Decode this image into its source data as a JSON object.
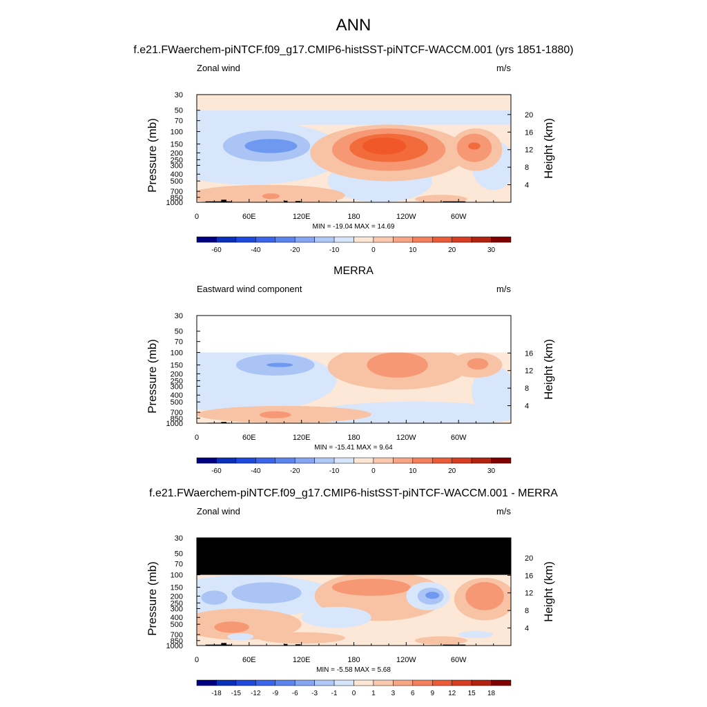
{
  "figure": {
    "title": "ANN",
    "colors": {
      "blue_dark": "#000080",
      "blue": "#2a5be0",
      "blue_mid": "#6f98f0",
      "blue_light": "#a9c4f5",
      "blue_pale": "#d7e6fa",
      "red_pale": "#fde7d6",
      "red_light": "#f8c2a4",
      "red_mid": "#f79874",
      "red": "#f26b3a",
      "red_dark": "#800000",
      "topography": "#000000",
      "missing": "#000000"
    }
  },
  "chart_data": [
    {
      "type": "heatmap",
      "title": "f.e21.FWaerchem-piNTCF.f09_g17.CMIP6-histSST-piNTCF-WACCM.001 (yrs 1851-1880)",
      "left_label": "Zonal wind",
      "right_label": "m/s",
      "ylabel": "Pressure (mb)",
      "ylabel_right": "Height (km)",
      "x_ticks": [
        "0",
        "60E",
        "120E",
        "180",
        "120W",
        "60W"
      ],
      "x_tick_lon": [
        0,
        60,
        120,
        180,
        240,
        300
      ],
      "xlim": [
        0,
        360
      ],
      "y_ticks": [
        "30",
        "50",
        "70",
        "100",
        "150",
        "200",
        "250",
        "300",
        "400",
        "500",
        "700",
        "850",
        "1000"
      ],
      "y_tick_values": [
        30,
        50,
        70,
        100,
        150,
        200,
        250,
        300,
        400,
        500,
        700,
        850,
        1000
      ],
      "ylim": [
        1000,
        30
      ],
      "y_scale": "log",
      "height_ticks": [
        "4",
        "8",
        "12",
        "16",
        "20"
      ],
      "height_tick_values": [
        4,
        8,
        12,
        16,
        20
      ],
      "stats": "MIN = -19.04  MAX =  14.69",
      "colorbar_labels": [
        "-60",
        "-40",
        "-20",
        "-10",
        "0",
        "10",
        "20",
        "30"
      ],
      "data_top_pressure": 30,
      "fields": [
        {
          "shape": "band",
          "level": 0,
          "p_top": 30,
          "p_bot": 50
        },
        {
          "shape": "band",
          "level": -1,
          "p_top": 50,
          "p_bot": 80
        },
        {
          "shape": "blob",
          "level": -1,
          "lon": 60,
          "p": 200,
          "rx": 110,
          "ry_decades": 0.45
        },
        {
          "shape": "blob",
          "level": -2,
          "lon": 80,
          "p": 160,
          "rx": 50,
          "ry_decades": 0.22
        },
        {
          "shape": "blob",
          "level": -3,
          "lon": 85,
          "p": 160,
          "rx": 30,
          "ry_decades": 0.1
        },
        {
          "shape": "blob",
          "level": -1,
          "lon": 210,
          "p": 500,
          "rx": 60,
          "ry_decades": 0.3
        },
        {
          "shape": "blob",
          "level": -1,
          "lon": 340,
          "p": 300,
          "rx": 25,
          "ry_decades": 0.35
        },
        {
          "shape": "blob",
          "level": 1,
          "lon": 220,
          "p": 200,
          "rx": 90,
          "ry_decades": 0.4
        },
        {
          "shape": "blob",
          "level": 2,
          "lon": 220,
          "p": 180,
          "rx": 65,
          "ry_decades": 0.3
        },
        {
          "shape": "blob",
          "level": 3,
          "lon": 220,
          "p": 170,
          "rx": 45,
          "ry_decades": 0.2
        },
        {
          "shape": "blob",
          "level": 4,
          "lon": 215,
          "p": 160,
          "rx": 25,
          "ry_decades": 0.12
        },
        {
          "shape": "blob",
          "level": 1,
          "lon": 320,
          "p": 180,
          "rx": 30,
          "ry_decades": 0.3
        },
        {
          "shape": "blob",
          "level": 2,
          "lon": 318,
          "p": 170,
          "rx": 20,
          "ry_decades": 0.2
        },
        {
          "shape": "blob",
          "level": 3,
          "lon": 318,
          "p": 160,
          "rx": 7,
          "ry_decades": 0.05
        },
        {
          "shape": "blob",
          "level": 1,
          "lon": 80,
          "p": 800,
          "rx": 90,
          "ry_decades": 0.15
        },
        {
          "shape": "blob",
          "level": 2,
          "lon": 85,
          "p": 820,
          "rx": 10,
          "ry_decades": 0.04
        },
        {
          "shape": "blob",
          "level": 1,
          "lon": 280,
          "p": 900,
          "rx": 30,
          "ry_decades": 0.06
        }
      ],
      "topography": [
        {
          "lon0": 10,
          "lon1": 40,
          "p_top": 970
        },
        {
          "lon0": 28,
          "lon1": 34,
          "p_top": 920
        },
        {
          "lon0": 100,
          "lon1": 104,
          "p_top": 950
        },
        {
          "lon0": 113,
          "lon1": 119,
          "p_top": 960
        },
        {
          "lon0": 282,
          "lon1": 308,
          "p_top": 970
        }
      ]
    },
    {
      "type": "heatmap",
      "title": "MERRA",
      "left_label": "Eastward wind component",
      "right_label": "m/s",
      "ylabel": "Pressure (mb)",
      "ylabel_right": "Height (km)",
      "x_ticks": [
        "0",
        "60E",
        "120E",
        "180",
        "120W",
        "60W"
      ],
      "x_tick_lon": [
        0,
        60,
        120,
        180,
        240,
        300
      ],
      "xlim": [
        0,
        360
      ],
      "y_ticks": [
        "30",
        "50",
        "70",
        "100",
        "150",
        "200",
        "250",
        "300",
        "400",
        "500",
        "700",
        "850",
        "1000"
      ],
      "y_tick_values": [
        30,
        50,
        70,
        100,
        150,
        200,
        250,
        300,
        400,
        500,
        700,
        850,
        1000
      ],
      "ylim": [
        1000,
        30
      ],
      "y_scale": "log",
      "height_ticks": [
        "4",
        "8",
        "12",
        "16"
      ],
      "height_tick_values": [
        4,
        8,
        12,
        16
      ],
      "stats": "MIN = -15.41  MAX =   9.64",
      "colorbar_labels": [
        "-60",
        "-40",
        "-20",
        "-10",
        "0",
        "10",
        "20",
        "30"
      ],
      "data_top_pressure": 100,
      "fields": [
        {
          "shape": "blob",
          "level": -1,
          "lon": 50,
          "p": 250,
          "rx": 110,
          "ry_decades": 0.45
        },
        {
          "shape": "blob",
          "level": -2,
          "lon": 90,
          "p": 150,
          "rx": 45,
          "ry_decades": 0.15
        },
        {
          "shape": "blob",
          "level": -3,
          "lon": 95,
          "p": 150,
          "rx": 15,
          "ry_decades": 0.03
        },
        {
          "shape": "blob",
          "level": -1,
          "lon": 250,
          "p": 750,
          "rx": 120,
          "ry_decades": 0.18
        },
        {
          "shape": "blob",
          "level": -1,
          "lon": 340,
          "p": 350,
          "rx": 25,
          "ry_decades": 0.35
        },
        {
          "shape": "blob",
          "level": 1,
          "lon": 230,
          "p": 160,
          "rx": 80,
          "ry_decades": 0.32
        },
        {
          "shape": "blob",
          "level": 2,
          "lon": 230,
          "p": 150,
          "rx": 35,
          "ry_decades": 0.18
        },
        {
          "shape": "blob",
          "level": 1,
          "lon": 320,
          "p": 150,
          "rx": 30,
          "ry_decades": 0.18
        },
        {
          "shape": "blob",
          "level": 2,
          "lon": 322,
          "p": 145,
          "rx": 12,
          "ry_decades": 0.08
        },
        {
          "shape": "blob",
          "level": 1,
          "lon": 100,
          "p": 750,
          "rx": 100,
          "ry_decades": 0.12
        },
        {
          "shape": "blob",
          "level": 2,
          "lon": 90,
          "p": 760,
          "rx": 18,
          "ry_decades": 0.05
        }
      ],
      "topography": [
        {
          "lon0": 12,
          "lon1": 38,
          "p_top": 985
        },
        {
          "lon0": 28,
          "lon1": 34,
          "p_top": 960
        }
      ]
    },
    {
      "type": "heatmap",
      "title": "f.e21.FWaerchem-piNTCF.f09_g17.CMIP6-histSST-piNTCF-WACCM.001 - MERRA",
      "left_label": "Zonal wind",
      "right_label": "m/s",
      "ylabel": "Pressure (mb)",
      "ylabel_right": "Height (km)",
      "x_ticks": [
        "0",
        "60E",
        "120E",
        "180",
        "120W",
        "60W"
      ],
      "x_tick_lon": [
        0,
        60,
        120,
        180,
        240,
        300
      ],
      "xlim": [
        0,
        360
      ],
      "y_ticks": [
        "30",
        "50",
        "70",
        "100",
        "150",
        "200",
        "250",
        "300",
        "400",
        "500",
        "700",
        "850",
        "1000"
      ],
      "y_tick_values": [
        30,
        50,
        70,
        100,
        150,
        200,
        250,
        300,
        400,
        500,
        700,
        850,
        1000
      ],
      "ylim": [
        1000,
        30
      ],
      "y_scale": "log",
      "height_ticks": [
        "4",
        "8",
        "12",
        "16",
        "20"
      ],
      "height_tick_values": [
        4,
        8,
        12,
        16,
        20
      ],
      "stats": "MIN =  -5.58  MAX =   5.68",
      "colorbar_labels": [
        "-18",
        "-15",
        "-12",
        "-9",
        "-6",
        "-3",
        "-1",
        "0",
        "1",
        "3",
        "6",
        "9",
        "12",
        "15",
        "18"
      ],
      "data_top_pressure": 100,
      "missing_region": {
        "p_top": 30,
        "p_bot": 100
      },
      "fields": [
        {
          "shape": "blob",
          "level": -1,
          "lon": 60,
          "p": 200,
          "rx": 100,
          "ry_decades": 0.3
        },
        {
          "shape": "blob",
          "level": -2,
          "lon": 80,
          "p": 180,
          "rx": 40,
          "ry_decades": 0.15
        },
        {
          "shape": "blob",
          "level": -2,
          "lon": 20,
          "p": 210,
          "rx": 15,
          "ry_decades": 0.1
        },
        {
          "shape": "blob",
          "level": 1,
          "lon": 210,
          "p": 200,
          "rx": 75,
          "ry_decades": 0.35
        },
        {
          "shape": "blob",
          "level": 2,
          "lon": 200,
          "p": 150,
          "rx": 45,
          "ry_decades": 0.12
        },
        {
          "shape": "blob",
          "level": -1,
          "lon": 265,
          "p": 200,
          "rx": 25,
          "ry_decades": 0.2
        },
        {
          "shape": "blob",
          "level": -2,
          "lon": 268,
          "p": 200,
          "rx": 15,
          "ry_decades": 0.12
        },
        {
          "shape": "blob",
          "level": -3,
          "lon": 270,
          "p": 195,
          "rx": 8,
          "ry_decades": 0.05
        },
        {
          "shape": "blob",
          "level": 1,
          "lon": 330,
          "p": 220,
          "rx": 35,
          "ry_decades": 0.3
        },
        {
          "shape": "blob",
          "level": 2,
          "lon": 330,
          "p": 200,
          "rx": 22,
          "ry_decades": 0.2
        },
        {
          "shape": "blob",
          "level": 1,
          "lon": 50,
          "p": 500,
          "rx": 70,
          "ry_decades": 0.22
        },
        {
          "shape": "blob",
          "level": 2,
          "lon": 40,
          "p": 550,
          "rx": 20,
          "ry_decades": 0.08
        },
        {
          "shape": "blob",
          "level": -1,
          "lon": 160,
          "p": 400,
          "rx": 40,
          "ry_decades": 0.15
        },
        {
          "shape": "blob",
          "level": -1,
          "lon": 50,
          "p": 750,
          "rx": 15,
          "ry_decades": 0.05
        },
        {
          "shape": "blob",
          "level": 1,
          "lon": 120,
          "p": 780,
          "rx": 50,
          "ry_decades": 0.08
        },
        {
          "shape": "blob",
          "level": 1,
          "lon": 280,
          "p": 850,
          "rx": 30,
          "ry_decades": 0.06
        },
        {
          "shape": "blob",
          "level": -1,
          "lon": 320,
          "p": 700,
          "rx": 20,
          "ry_decades": 0.05
        }
      ],
      "topography": [
        {
          "lon0": 10,
          "lon1": 40,
          "p_top": 970
        },
        {
          "lon0": 28,
          "lon1": 34,
          "p_top": 920
        },
        {
          "lon0": 100,
          "lon1": 104,
          "p_top": 950
        },
        {
          "lon0": 113,
          "lon1": 119,
          "p_top": 960
        },
        {
          "lon0": 282,
          "lon1": 308,
          "p_top": 970
        }
      ]
    }
  ]
}
